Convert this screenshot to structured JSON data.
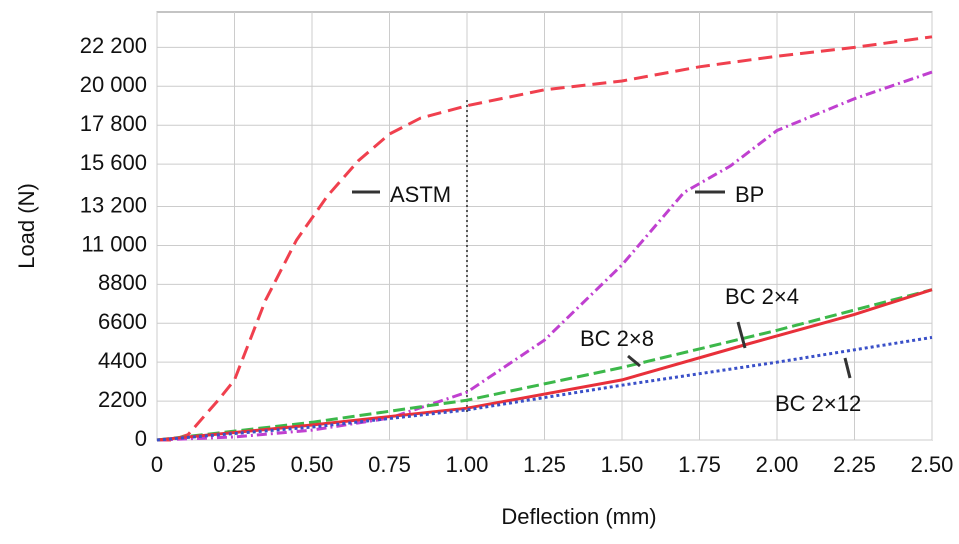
{
  "chart_data": {
    "type": "line",
    "x_label": "Deflection (mm)",
    "y_label": "Load (N)",
    "xlim": [
      0,
      2.5
    ],
    "ylim": [
      0,
      24200
    ],
    "xticks": [
      0,
      0.25,
      {
        "value": 0.5,
        "label": "0.50"
      },
      0.75,
      {
        "value": 1,
        "label": "1.00"
      },
      1.25,
      {
        "value": 1.5,
        "label": "1.50"
      },
      1.75,
      {
        "value": 2,
        "label": "2.00"
      },
      2.25,
      {
        "value": 2.5,
        "label": "2.50"
      }
    ],
    "yticks": [
      0,
      2200,
      4400,
      6600,
      8800,
      {
        "value": 11000,
        "label": "11 000"
      },
      {
        "value": 13200,
        "label": "13 200"
      },
      {
        "value": 15600,
        "label": "15 600"
      },
      {
        "value": 17800,
        "label": "17 800"
      },
      {
        "value": 20000,
        "label": "20 000"
      },
      {
        "value": 22200,
        "label": "22 200"
      }
    ],
    "grid": true,
    "series": [
      {
        "name": "ASTM",
        "color": "#f0404e",
        "dash": "14 7",
        "x": [
          0,
          0.05,
          0.1,
          0.2,
          0.25,
          0.35,
          0.45,
          0.55,
          0.65,
          0.75,
          0.85,
          1.0,
          1.25,
          1.5,
          1.75,
          2.0,
          2.25,
          2.5
        ],
        "values": [
          0,
          0,
          300,
          2300,
          3400,
          7900,
          11300,
          13800,
          15800,
          17300,
          18200,
          18900,
          19800,
          20300,
          21100,
          21700,
          22200,
          22800
        ]
      },
      {
        "name": "BP",
        "color": "#c040d0",
        "dash": "10 4 2 4",
        "x": [
          0,
          0.25,
          0.5,
          0.75,
          1.0,
          1.25,
          1.5,
          1.7,
          1.85,
          2.0,
          2.25,
          2.5
        ],
        "values": [
          0,
          170,
          560,
          1240,
          2700,
          5650,
          9900,
          14000,
          15500,
          17500,
          19300,
          20800
        ]
      },
      {
        "name": "BC 2×8",
        "color": "#3cb84a",
        "dash": "12 5",
        "x": [
          0,
          0.5,
          1.0,
          1.5,
          2.0,
          2.5
        ],
        "values": [
          0,
          1000,
          2250,
          4100,
          6200,
          8500
        ]
      },
      {
        "name": "BC 2×4",
        "color": "#e8303a",
        "dash": "none",
        "x": [
          0,
          0.5,
          1.0,
          1.5,
          1.9,
          2.25,
          2.5
        ],
        "values": [
          0,
          850,
          1800,
          3400,
          5400,
          7100,
          8500
        ]
      },
      {
        "name": "BC 2×12",
        "color": "#3a50c8",
        "dash": "3 3",
        "x": [
          0,
          0.5,
          1.0,
          1.5,
          2.0,
          2.5
        ],
        "values": [
          0,
          730,
          1700,
          3100,
          4400,
          5800
        ]
      }
    ]
  }
}
